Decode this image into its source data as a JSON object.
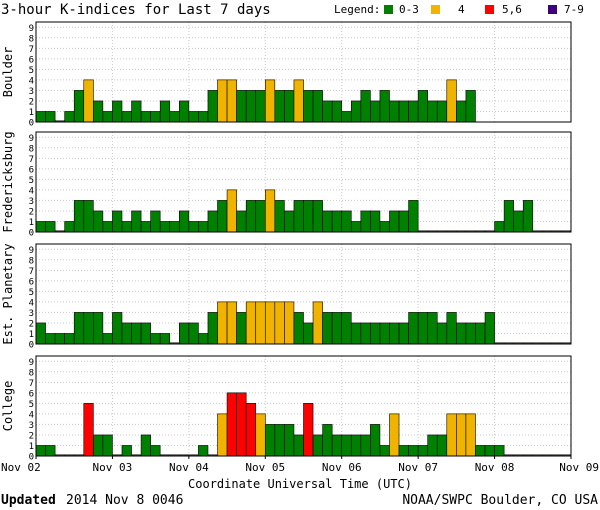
{
  "chart_data": {
    "type": "bar",
    "title": "3-hour K-indices for Last 7 days",
    "legend": {
      "label": "Legend:",
      "items": [
        {
          "label": "0-3",
          "color": "#008000"
        },
        {
          "label": "4",
          "color": "#f0b400"
        },
        {
          "label": "5,6",
          "color": "#ff0000"
        },
        {
          "label": "7-9",
          "color": "#3c0080"
        }
      ]
    },
    "ylim": [
      0,
      9
    ],
    "yticks": [
      "0",
      "1",
      "2",
      "3",
      "4",
      "5",
      "6",
      "7",
      "8",
      "9"
    ],
    "xticks": [
      "Nov 02",
      "Nov 03",
      "Nov 04",
      "Nov 05",
      "Nov 06",
      "Nov 07",
      "Nov 08",
      "Nov 09"
    ],
    "xlabel": "Coordinate Universal Time (UTC)",
    "panels": [
      {
        "name": "Boulder",
        "values": [
          1,
          1,
          0,
          1,
          3,
          4,
          2,
          1,
          2,
          1,
          2,
          1,
          1,
          2,
          1,
          2,
          1,
          1,
          3,
          4,
          4,
          3,
          3,
          3,
          4,
          3,
          3,
          4,
          3,
          3,
          2,
          2,
          1,
          2,
          3,
          2,
          3,
          2,
          2,
          2,
          3,
          2,
          2,
          4,
          2,
          3,
          null,
          null,
          null,
          null,
          null,
          null,
          null,
          null,
          null,
          null
        ]
      },
      {
        "name": "Fredericksburg",
        "values": [
          1,
          1,
          0,
          1,
          3,
          3,
          2,
          1,
          2,
          1,
          2,
          1,
          2,
          1,
          1,
          2,
          1,
          1,
          2,
          3,
          4,
          2,
          3,
          3,
          4,
          3,
          2,
          3,
          3,
          3,
          2,
          2,
          2,
          1,
          2,
          2,
          1,
          2,
          2,
          3,
          0,
          0,
          0,
          0,
          0,
          0,
          0,
          0,
          1,
          3,
          2,
          3,
          0,
          0,
          0,
          0
        ]
      },
      {
        "name": "Est. Planetary",
        "values": [
          2,
          1,
          1,
          1,
          3,
          3,
          3,
          1,
          3,
          2,
          2,
          2,
          1,
          1,
          0,
          2,
          2,
          1,
          3,
          4,
          4,
          3,
          4,
          4,
          4,
          4,
          4,
          3,
          2,
          4,
          3,
          3,
          3,
          2,
          2,
          2,
          2,
          2,
          2,
          3,
          3,
          3,
          2,
          3,
          2,
          2,
          2,
          3,
          0,
          0,
          0,
          0,
          0,
          0,
          0,
          0
        ]
      },
      {
        "name": "College",
        "values": [
          1,
          1,
          0,
          0,
          0,
          5,
          2,
          2,
          0,
          1,
          0,
          2,
          1,
          0,
          0,
          0,
          0,
          1,
          0,
          4,
          6,
          6,
          5,
          4,
          3,
          3,
          3,
          2,
          5,
          2,
          3,
          2,
          2,
          2,
          2,
          3,
          1,
          4,
          1,
          1,
          1,
          2,
          2,
          4,
          4,
          4,
          1,
          1,
          1,
          0,
          0,
          0,
          0,
          0,
          0,
          0
        ]
      }
    ]
  },
  "footer": {
    "updated_label": "Updated",
    "updated_value": "2014 Nov  8 0046",
    "source": "NOAA/SWPC Boulder, CO USA"
  }
}
